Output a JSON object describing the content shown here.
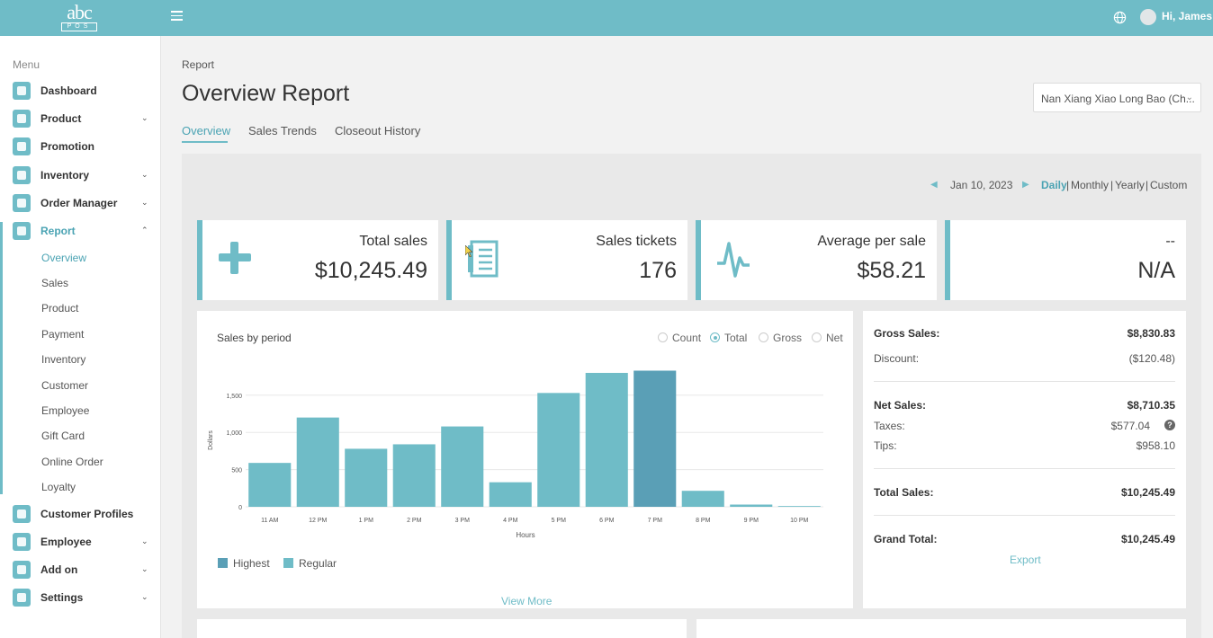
{
  "header": {
    "logo_big": "abc",
    "logo_small": "POS",
    "greeting": "Hi, James"
  },
  "sidebar": {
    "menu_label": "Menu",
    "items": [
      {
        "label": "Dashboard",
        "icon": "home-icon"
      },
      {
        "label": "Product",
        "icon": "grid-icon"
      },
      {
        "label": "Promotion",
        "icon": "gear-icon"
      },
      {
        "label": "Inventory",
        "icon": "clipboard-icon"
      },
      {
        "label": "Order Manager",
        "icon": "list-icon"
      },
      {
        "label": "Report",
        "icon": "pie-chart-icon"
      },
      {
        "label": "Customer Profiles",
        "icon": "users-icon"
      },
      {
        "label": "Employee",
        "icon": "id-badge-icon"
      },
      {
        "label": "Add on",
        "icon": "puzzle-icon"
      },
      {
        "label": "Settings",
        "icon": "settings-icon"
      }
    ],
    "report_sub": [
      "Overview",
      "Sales",
      "Product",
      "Payment",
      "Inventory",
      "Customer",
      "Employee",
      "Gift Card",
      "Online Order",
      "Loyalty"
    ]
  },
  "main": {
    "breadcrumb": "Report",
    "title": "Overview Report",
    "store": "Nan Xiang Xiao Long Bao (Ch...",
    "tabs": [
      "Overview",
      "Sales Trends",
      "Closeout History"
    ],
    "date": "Jan 10, 2023",
    "periods": [
      "Daily",
      "Monthly",
      "Yearly",
      "Custom"
    ],
    "period_sep": "|",
    "cards": [
      {
        "title": "Total sales",
        "value": "$10,245.49"
      },
      {
        "title": "Sales tickets",
        "value": "176"
      },
      {
        "title": "Average per sale",
        "value": "$58.21"
      },
      {
        "title": "--",
        "value": "N/A"
      }
    ],
    "chart_title": "Sales by period",
    "radios": [
      "Count",
      "Total",
      "Gross",
      "Net"
    ],
    "legend": [
      "Highest",
      "Regular"
    ],
    "view_more": "View More",
    "summary": {
      "gross_sales": {
        "label": "Gross Sales:",
        "value": "$8,830.83"
      },
      "discount": {
        "label": "Discount:",
        "value": "($120.48)"
      },
      "net_sales": {
        "label": "Net Sales:",
        "value": "$8,710.35"
      },
      "taxes": {
        "label": "Taxes:",
        "value": "$577.04"
      },
      "tips": {
        "label": "Tips:",
        "value": "$958.10"
      },
      "total_sales": {
        "label": "Total Sales:",
        "value": "$10,245.49"
      },
      "grand_total": {
        "label": "Grand Total:",
        "value": "$10,245.49"
      },
      "help": "?",
      "export": "Export"
    }
  },
  "colors": {
    "accent": "#6fbcc7",
    "bar_regular": "#6fbcc7",
    "bar_highest": "#5a9fb6"
  },
  "chart_data": {
    "type": "bar",
    "categories": [
      "11 AM",
      "12 PM",
      "1 PM",
      "2 PM",
      "3 PM",
      "4 PM",
      "5 PM",
      "6 PM",
      "7 PM",
      "8 PM",
      "9 PM",
      "10 PM"
    ],
    "values": [
      590,
      1200,
      780,
      840,
      1080,
      330,
      1530,
      1800,
      1830,
      215,
      30,
      10
    ],
    "highest_index": 8,
    "xlabel": "Hours",
    "ylabel": "Dollars",
    "yticks": [
      0,
      500,
      1000,
      1500
    ],
    "ytick_labels": [
      "0",
      "500",
      "1,000",
      "1,500"
    ],
    "ylim": [
      0,
      1860
    ],
    "grid": true,
    "legend_position": "bottom-left"
  }
}
